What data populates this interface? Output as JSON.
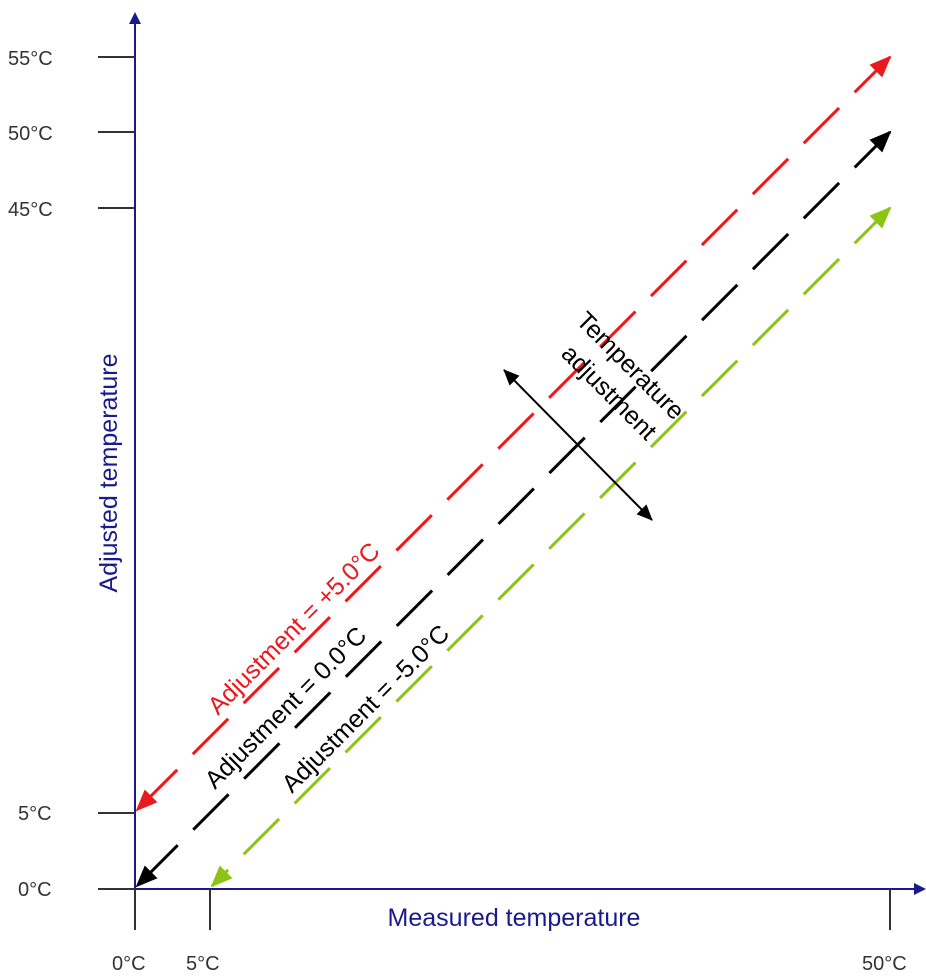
{
  "axes": {
    "x_title": "Measured temperature",
    "y_title": "Adjusted temperature",
    "x_ticks": [
      "0°C",
      "5°C",
      "50°C"
    ],
    "y_ticks": [
      "0°C",
      "5°C",
      "45°C",
      "50°C",
      "55°C"
    ]
  },
  "labels": {
    "plus": "Adjustment = +5.0°C",
    "zero": "Adjustment = 0.0°C",
    "minus": "Adjustment = -5.0°C",
    "temp_line1": "Temperature",
    "temp_line2": "adjustment"
  },
  "colors": {
    "axis": "#1a1a8c",
    "tick": "#333333",
    "plus": "#e8191f",
    "zero": "#000000",
    "minus": "#8cc414"
  },
  "lines": [
    {
      "name": "plus",
      "adjustment": 5.0,
      "from": [
        0,
        5
      ],
      "to": [
        50,
        55
      ]
    },
    {
      "name": "zero",
      "adjustment": 0.0,
      "from": [
        0,
        0
      ],
      "to": [
        50,
        50
      ]
    },
    {
      "name": "minus",
      "adjustment": -5.0,
      "from": [
        5,
        0
      ],
      "to": [
        50,
        45
      ]
    }
  ]
}
